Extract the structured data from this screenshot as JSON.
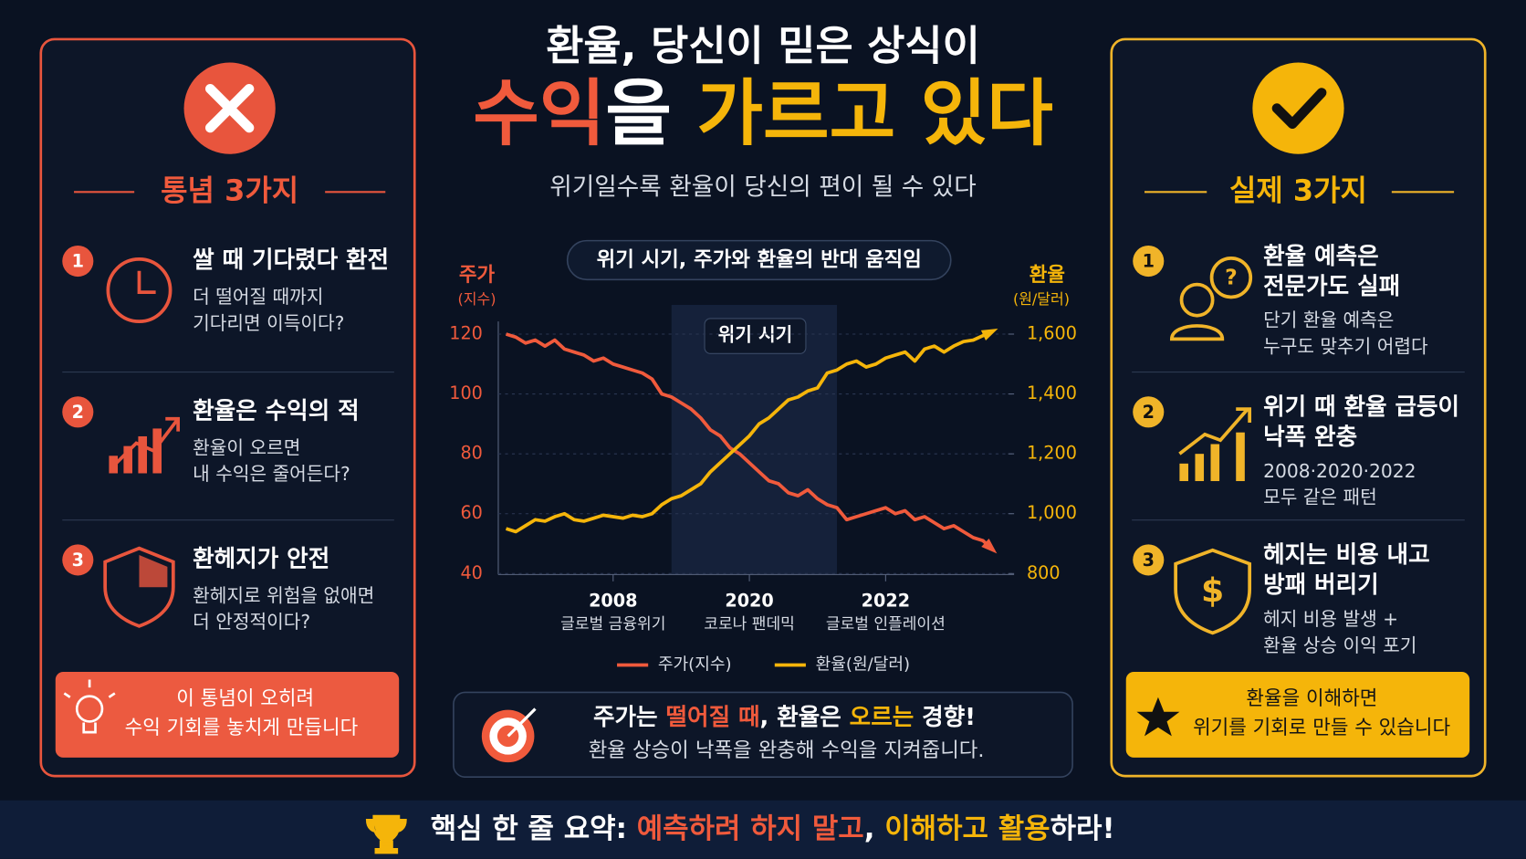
{
  "header": {
    "title_line1": "환율, 당신이 믿은 상식이",
    "title_line2": [
      "수익",
      "을 ",
      "가르고 있다"
    ],
    "subtitle": "위기일수록 환율이 당신의 편이 될 수 있다"
  },
  "myths": {
    "heading": "통념 3가지",
    "items": [
      {
        "number": "1",
        "title": "쌀 때 기다렸다 환전",
        "desc": [
          "더 떨어질 때까지",
          "기다리면 이득이다?"
        ]
      },
      {
        "number": "2",
        "title": "환율은 수익의 적",
        "desc": [
          "환율이 오르면",
          "내 수익은 줄어든다?"
        ]
      },
      {
        "number": "3",
        "title": "환헤지가 안전",
        "desc": [
          "환헤지로 위험을 없애면",
          "더 안정적이다?"
        ]
      }
    ],
    "note": [
      "이 통념이 오히려",
      "수익 기회를 놓치게 만듭니다"
    ]
  },
  "facts": {
    "heading": "실제 3가지",
    "items": [
      {
        "number": "1",
        "title": [
          "환율 예측은",
          "전문가도 실패"
        ],
        "desc": [
          "단기 환율 예측은",
          "누구도 맞추기 어렵다"
        ]
      },
      {
        "number": "2",
        "title": [
          "위기 때 환율 급등이",
          "낙폭 완충"
        ],
        "desc": [
          "2008·2020·2022",
          "모두 같은 패턴"
        ]
      },
      {
        "number": "3",
        "title": [
          "헤지는 비용 내고",
          "방패 버리기"
        ],
        "desc": [
          "헤지 비용 발생 +",
          "환율 상승 이익 포기"
        ]
      }
    ],
    "note": [
      "환율을 이해하면",
      "위기를 기회로 만들 수 있습니다"
    ]
  },
  "chart_data": {
    "type": "line",
    "title": "위기 시기, 주가와 환율의 반대 움직임",
    "shaded_label": "위기 시기",
    "y_label": "주가",
    "y_unit": "(지수)",
    "y2_label": "환율",
    "y2_unit": "(원/달러)",
    "categories": [
      null,
      null,
      null,
      null,
      null,
      null,
      null,
      null,
      null,
      null,
      null,
      "2008",
      null,
      null,
      null,
      null,
      null,
      null,
      null,
      null,
      null,
      null,
      null,
      null,
      null,
      "2020",
      null,
      null,
      null,
      null,
      null,
      null,
      null,
      null,
      null,
      null,
      null,
      null,
      null,
      "2022",
      null,
      null,
      null,
      null,
      null,
      null,
      null,
      null,
      null,
      null,
      null
    ],
    "category_notes": [
      null,
      null,
      null,
      null,
      null,
      null,
      null,
      null,
      null,
      null,
      null,
      "글로벌 금융위기",
      null,
      null,
      null,
      null,
      null,
      null,
      null,
      null,
      null,
      null,
      null,
      null,
      null,
      "코로나 팬데믹",
      null,
      null,
      null,
      null,
      null,
      null,
      null,
      null,
      null,
      null,
      null,
      null,
      null,
      "글로벌 인플레이션",
      null,
      null,
      null,
      null,
      null,
      null,
      null,
      null,
      null,
      null,
      null
    ],
    "series": [
      {
        "name": "주가(지수)",
        "color": "#f05a3c",
        "values": [
          120,
          119,
          117,
          118,
          116,
          118,
          115,
          114,
          113,
          111,
          112,
          110,
          109,
          108,
          107,
          105,
          100,
          99,
          97,
          95,
          92,
          88,
          86,
          82,
          80,
          77,
          74,
          71,
          70,
          67,
          66,
          68,
          65,
          63,
          62,
          58,
          59,
          60,
          61,
          62,
          60,
          61,
          58,
          59,
          57,
          55,
          56,
          54,
          52,
          51,
          48
        ]
      },
      {
        "name": "환율(원/달러)",
        "color": "#f5b50a",
        "axis": "y2",
        "values": [
          950,
          940,
          960,
          980,
          975,
          990,
          1000,
          980,
          975,
          985,
          995,
          990,
          985,
          995,
          990,
          1000,
          1030,
          1050,
          1060,
          1080,
          1100,
          1140,
          1170,
          1200,
          1230,
          1260,
          1300,
          1320,
          1350,
          1380,
          1390,
          1410,
          1420,
          1470,
          1480,
          1500,
          1510,
          1490,
          1500,
          1520,
          1530,
          1540,
          1510,
          1550,
          1560,
          1540,
          1560,
          1575,
          1580,
          1595,
          1610
        ]
      }
    ],
    "ylim": [
      40,
      120
    ],
    "yticks": [
      40,
      60,
      80,
      100,
      120
    ],
    "y2lim": [
      800,
      1600
    ],
    "y2ticks": [
      800,
      {
        "value": 1000,
        "label": "1,000"
      },
      {
        "value": 1200,
        "label": "1,200"
      },
      {
        "value": 1400,
        "label": "1,400"
      },
      {
        "value": 1600,
        "label": "1,600"
      }
    ],
    "grid": true
  },
  "callout": {
    "line1": [
      "주가는 ",
      "떨어질 때",
      ", 환율은 ",
      "오르는",
      " 경향!"
    ],
    "line2": "환율 상승이 낙폭을 완충해 수익을 지켜줍니다."
  },
  "footer": [
    "핵심 한 줄 요약: ",
    "예측하려 하지 말고",
    ", ",
    "이해하고 활용",
    "하라!"
  ]
}
